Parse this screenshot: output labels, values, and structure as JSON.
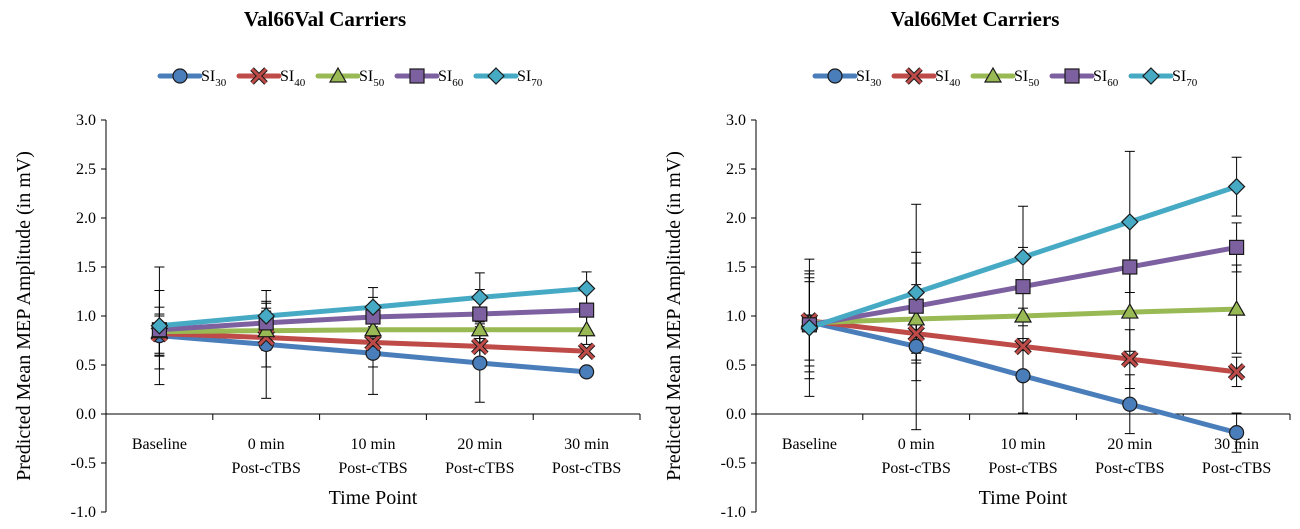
{
  "chart_data": [
    {
      "type": "line",
      "title": "Val66Val Carriers",
      "xlabel": "Time Point",
      "ylabel": "Predicted Mean MEP Amplitude (in mV)",
      "ylim": [
        -1.0,
        3.0
      ],
      "yticks": [
        "3.0",
        "2.5",
        "2.0",
        "1.5",
        "1.0",
        "0.5",
        "0.0",
        "-0.5",
        "-1.0"
      ],
      "categories": [
        {
          "line1": "Baseline",
          "line2": ""
        },
        {
          "line1": "0 min",
          "line2": "Post-cTBS"
        },
        {
          "line1": "10 min",
          "line2": "Post-cTBS"
        },
        {
          "line1": "20 min",
          "line2": "Post-cTBS"
        },
        {
          "line1": "30 min",
          "line2": "Post-cTBS"
        }
      ],
      "series": [
        {
          "name": "SI",
          "sub": "30",
          "color": "#4a7ebb",
          "marker": "circle",
          "values": [
            0.8,
            0.71,
            0.62,
            0.52,
            0.43
          ],
          "errors": [
            0.2,
            0.55,
            0.42,
            0.4,
            0.0
          ]
        },
        {
          "name": "SI",
          "sub": "40",
          "color": "#be4b48",
          "marker": "x",
          "values": [
            0.82,
            0.78,
            0.73,
            0.69,
            0.64
          ],
          "errors": [
            0.2,
            0.3,
            0.25,
            0.2,
            0.0
          ]
        },
        {
          "name": "SI",
          "sub": "50",
          "color": "#98b954",
          "marker": "triangle",
          "values": [
            0.84,
            0.85,
            0.86,
            0.86,
            0.86
          ],
          "errors": [
            0.25,
            0.2,
            0.2,
            0.2,
            0.15
          ]
        },
        {
          "name": "SI",
          "sub": "60",
          "color": "#7d60a0",
          "marker": "square",
          "values": [
            0.86,
            0.93,
            0.99,
            1.02,
            1.06
          ],
          "errors": [
            0.4,
            0.2,
            0.2,
            0.25,
            0.25
          ]
        },
        {
          "name": "SI",
          "sub": "70",
          "color": "#46aac5",
          "marker": "diamond",
          "values": [
            0.9,
            1.0,
            1.09,
            1.19,
            1.28
          ],
          "errors": [
            0.6,
            0.15,
            0.2,
            0.25,
            0.17
          ]
        }
      ]
    },
    {
      "type": "line",
      "title": "Val66Met Carriers",
      "xlabel": "Time Point",
      "ylabel": "Predicted Mean MEP Amplitude (in mV)",
      "ylim": [
        -1.0,
        3.0
      ],
      "yticks": [
        "3.0",
        "2.5",
        "2.0",
        "1.5",
        "1.0",
        "0.5",
        "0.0",
        "-0.5",
        "-1.0"
      ],
      "categories": [
        {
          "line1": "Baseline",
          "line2": ""
        },
        {
          "line1": "0 min",
          "line2": "Post-cTBS"
        },
        {
          "line1": "10 min",
          "line2": "Post-cTBS"
        },
        {
          "line1": "20 min",
          "line2": "Post-cTBS"
        },
        {
          "line1": "30 min",
          "line2": "Post-cTBS"
        }
      ],
      "series": [
        {
          "name": "SI",
          "sub": "30",
          "color": "#4a7ebb",
          "marker": "circle",
          "values": [
            0.94,
            0.69,
            0.39,
            0.1,
            -0.19
          ],
          "errors": [
            0.45,
            0.85,
            0.38,
            0.3,
            0.2
          ]
        },
        {
          "name": "SI",
          "sub": "40",
          "color": "#be4b48",
          "marker": "x",
          "values": [
            0.95,
            0.82,
            0.69,
            0.56,
            0.43
          ],
          "errors": [
            0.4,
            0.3,
            0.3,
            0.3,
            0.15
          ]
        },
        {
          "name": "SI",
          "sub": "50",
          "color": "#98b954",
          "marker": "triangle",
          "values": [
            0.93,
            0.97,
            1.0,
            1.04,
            1.07
          ],
          "errors": [
            0.5,
            0.35,
            0.35,
            0.4,
            0.45
          ]
        },
        {
          "name": "SI",
          "sub": "60",
          "color": "#7d60a0",
          "marker": "square",
          "values": [
            0.91,
            1.1,
            1.3,
            1.5,
            1.7
          ],
          "errors": [
            0.55,
            0.55,
            0.4,
            0.45,
            0.25
          ]
        },
        {
          "name": "SI",
          "sub": "70",
          "color": "#46aac5",
          "marker": "diamond",
          "values": [
            0.88,
            1.24,
            1.6,
            1.96,
            2.32
          ],
          "errors": [
            0.7,
            0.9,
            0.52,
            0.72,
            0.3
          ]
        }
      ]
    }
  ]
}
